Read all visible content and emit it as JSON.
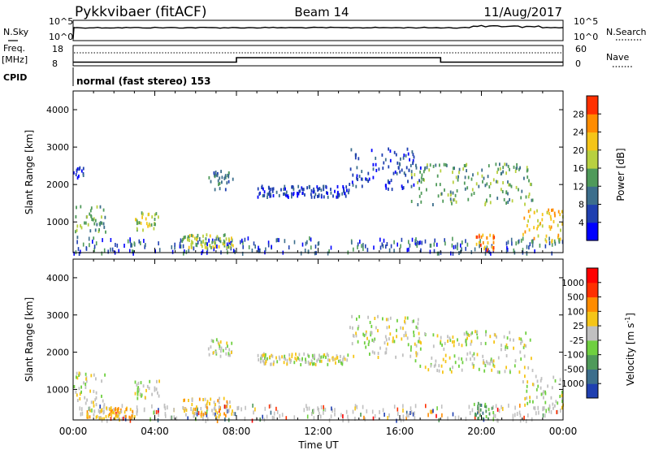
{
  "header": {
    "station": "Pykkvibaer (fitACF)",
    "beam": "Beam 14",
    "date": "11/Aug/2017",
    "mode": "normal (fast stereo) 153"
  },
  "summary_panels": {
    "noise": {
      "left_label": "N.Sky",
      "right_label": "N.Search",
      "left_ticks": [
        "10^5",
        "10^0"
      ],
      "right_ticks": [
        "10^5",
        "10^0"
      ]
    },
    "freq": {
      "left_label": "Freq.",
      "left_units": "[MHz]",
      "right_label": "Nave",
      "left_ticks": [
        "18",
        "8"
      ],
      "right_ticks": [
        "60",
        "0"
      ],
      "freq_step_times_h": [
        0,
        8,
        18,
        24
      ],
      "freq_levels": [
        0.82,
        0.6,
        0.82
      ]
    },
    "cpid_label": "CPID"
  },
  "chart_data": [
    {
      "type": "heatmap",
      "panel": "power",
      "ylabel": "Slant Range [km]",
      "ylim": [
        180,
        4500
      ],
      "yticks": [
        "1000",
        "2000",
        "3000",
        "4000"
      ],
      "xlim_hours": [
        0,
        24
      ],
      "xticks": [
        "00:00",
        "04:00",
        "08:00",
        "12:00",
        "16:00",
        "20:00",
        "00:00"
      ],
      "colorbar": {
        "label": "Power [dB]",
        "ticks": [
          "4",
          "8",
          "12",
          "16",
          "20",
          "24",
          "28"
        ],
        "colors": [
          "#0000ff",
          "#1f3fb0",
          "#3c6e8c",
          "#4f9a5a",
          "#b8d040",
          "#f5c518",
          "#ff8c00",
          "#ff3000"
        ]
      },
      "features": [
        {
          "t0": 0.0,
          "t1": 1.6,
          "r0": 600,
          "r1": 1500,
          "level": 3
        },
        {
          "t0": 0.0,
          "t1": 0.5,
          "r0": 2200,
          "r1": 2500,
          "level": 1
        },
        {
          "t0": 3.0,
          "t1": 4.2,
          "r0": 800,
          "r1": 1300,
          "level": 4
        },
        {
          "t0": 5.3,
          "t1": 7.8,
          "r0": 350,
          "r1": 700,
          "level": 4
        },
        {
          "t0": 6.6,
          "t1": 7.8,
          "r0": 1900,
          "r1": 2400,
          "level": 2
        },
        {
          "t0": 9.0,
          "t1": 13.5,
          "r0": 1700,
          "r1": 2000,
          "level": 1
        },
        {
          "t0": 13.5,
          "t1": 17.0,
          "r0": 1900,
          "r1": 3000,
          "level": 1
        },
        {
          "t0": 16.5,
          "t1": 22.5,
          "r0": 1500,
          "r1": 2600,
          "level": 3
        },
        {
          "t0": 22.0,
          "t1": 24.0,
          "r0": 500,
          "r1": 1400,
          "level": 5
        },
        {
          "t0": 19.6,
          "t1": 20.6,
          "r0": 250,
          "r1": 700,
          "level": 6
        }
      ]
    },
    {
      "type": "heatmap",
      "panel": "velocity",
      "ylabel": "Slant Range [km]",
      "ylim": [
        180,
        4500
      ],
      "yticks": [
        "1000",
        "2000",
        "3000",
        "4000"
      ],
      "xlim_hours": [
        0,
        24
      ],
      "xticks": [
        "00:00",
        "04:00",
        "08:00",
        "12:00",
        "16:00",
        "20:00",
        "00:00"
      ],
      "xlabel": "Time UT",
      "colorbar": {
        "label": "Velocity [m s",
        "label_sup": "-1",
        "label_end": "]",
        "ticks": [
          "1000",
          "500",
          "100",
          "25",
          "-25",
          "-100",
          "-500",
          "-1000"
        ],
        "colors": [
          "#1f3fb0",
          "#3c6e8c",
          "#4f9a5a",
          "#6fd040",
          "#c0c0c0",
          "#f5c518",
          "#ff8c00",
          "#ff3000",
          "#ff0000"
        ]
      },
      "features": [
        {
          "t0": 0.0,
          "t1": 1.6,
          "r0": 600,
          "r1": 1500,
          "level": 4
        },
        {
          "t0": 3.0,
          "t1": 4.2,
          "r0": 800,
          "r1": 1300,
          "level": 4
        },
        {
          "t0": 0.6,
          "t1": 3.0,
          "r0": 250,
          "r1": 550,
          "level": 5
        },
        {
          "t0": 5.3,
          "t1": 7.8,
          "r0": 300,
          "r1": 800,
          "level": 5
        },
        {
          "t0": 6.6,
          "t1": 7.8,
          "r0": 1900,
          "r1": 2400,
          "level": 4
        },
        {
          "t0": 9.0,
          "t1": 13.5,
          "r0": 1700,
          "r1": 2000,
          "level": 4
        },
        {
          "t0": 13.5,
          "t1": 17.0,
          "r0": 1900,
          "r1": 3000,
          "level": 4
        },
        {
          "t0": 16.5,
          "t1": 22.5,
          "r0": 1500,
          "r1": 2600,
          "level": 4
        },
        {
          "t0": 22.0,
          "t1": 24.0,
          "r0": 500,
          "r1": 1400,
          "level": 4
        },
        {
          "t0": 19.6,
          "t1": 20.6,
          "r0": 250,
          "r1": 700,
          "level": 2
        }
      ]
    }
  ]
}
